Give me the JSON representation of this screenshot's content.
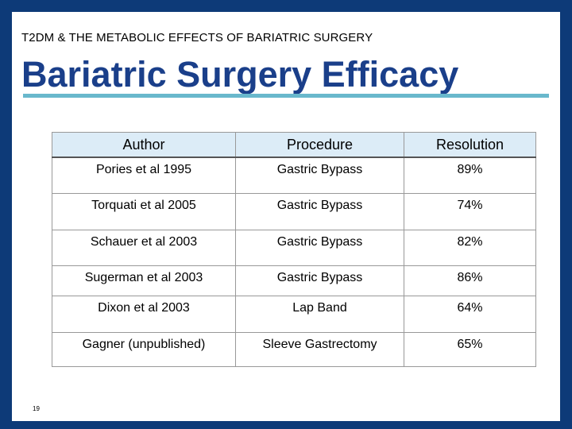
{
  "slide": {
    "kicker": "T2DM & THE METABOLIC EFFECTS OF BARIATRIC SURGERY",
    "title": "Bariatric Surgery Efficacy",
    "page_number": "19"
  },
  "table": {
    "headers": [
      "Author",
      "Procedure",
      "Resolution"
    ],
    "rows": [
      [
        "Pories et al 1995",
        "Gastric Bypass",
        "89%"
      ],
      [
        "Torquati et al 2005",
        "Gastric Bypass",
        "74%"
      ],
      [
        "Schauer et al 2003",
        "Gastric Bypass",
        "82%"
      ],
      [
        "Sugerman et al 2003",
        "Gastric Bypass",
        "86%"
      ],
      [
        "Dixon et al 2003",
        "Lap Band",
        "64%"
      ],
      [
        "Gagner (unpublished)",
        "Sleeve Gastrectomy",
        "65%"
      ]
    ]
  },
  "colors": {
    "frame": "#0d3a78",
    "title": "#1a3f8a",
    "rule": "#69b8cc",
    "header_fill": "#dcecf7"
  }
}
